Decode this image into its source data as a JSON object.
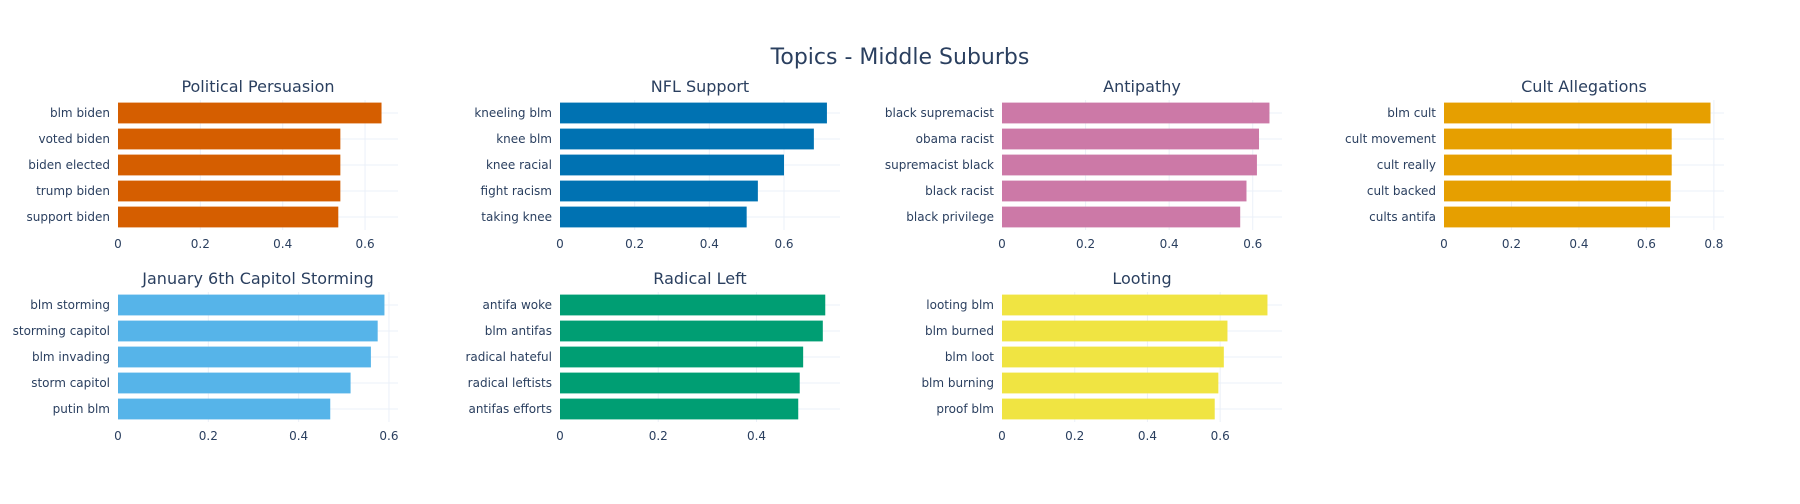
{
  "title": "Topics - Middle Suburbs",
  "chart_data": [
    {
      "type": "bar",
      "orientation": "horizontal",
      "title": "Political Persuasion",
      "color": "#D55E00",
      "categories": [
        "blm biden",
        "voted biden",
        "biden elected",
        "trump biden",
        "support biden"
      ],
      "values": [
        0.64,
        0.54,
        0.54,
        0.54,
        0.535
      ],
      "xlim": [
        0,
        0.68
      ],
      "xticks": [
        0,
        0.2,
        0.4,
        0.6
      ],
      "grid": true
    },
    {
      "type": "bar",
      "orientation": "horizontal",
      "title": "NFL Support",
      "color": "#0072B2",
      "categories": [
        "kneeling blm",
        "knee blm",
        "knee racial",
        "fight racism",
        "taking knee"
      ],
      "values": [
        0.715,
        0.68,
        0.6,
        0.53,
        0.5
      ],
      "xlim": [
        0,
        0.75
      ],
      "xticks": [
        0,
        0.2,
        0.4,
        0.6
      ],
      "grid": true
    },
    {
      "type": "bar",
      "orientation": "horizontal",
      "title": "Antipathy",
      "color": "#CC79A7",
      "categories": [
        "black supremacist",
        "obama racist",
        "supremacist black",
        "black racist",
        "black privilege"
      ],
      "values": [
        0.64,
        0.615,
        0.61,
        0.585,
        0.57
      ],
      "xlim": [
        0,
        0.67
      ],
      "xticks": [
        0,
        0.2,
        0.4,
        0.6
      ],
      "grid": true
    },
    {
      "type": "bar",
      "orientation": "horizontal",
      "title": "Cult Allegations",
      "color": "#E69F00",
      "categories": [
        "blm cult",
        "cult movement",
        "cult really",
        "cult backed",
        "cults antifa"
      ],
      "values": [
        0.79,
        0.675,
        0.675,
        0.672,
        0.67
      ],
      "xlim": [
        0,
        0.83
      ],
      "xticks": [
        0,
        0.2,
        0.4,
        0.6,
        0.8
      ],
      "grid": true
    },
    {
      "type": "bar",
      "orientation": "horizontal",
      "title": "January 6th Capitol Storming",
      "color": "#56B4E9",
      "categories": [
        "blm storming",
        "storming capitol",
        "blm invading",
        "storm capitol",
        "putin blm"
      ],
      "values": [
        0.59,
        0.575,
        0.56,
        0.515,
        0.47
      ],
      "xlim": [
        0,
        0.62
      ],
      "xticks": [
        0,
        0.2,
        0.4,
        0.6
      ],
      "grid": true
    },
    {
      "type": "bar",
      "orientation": "horizontal",
      "title": "Radical Left",
      "color": "#009E73",
      "categories": [
        "antifa woke",
        "blm antifas",
        "radical hateful",
        "radical leftists",
        "antifas efforts"
      ],
      "values": [
        0.54,
        0.535,
        0.495,
        0.488,
        0.485
      ],
      "xlim": [
        0,
        0.57
      ],
      "xticks": [
        0,
        0.2,
        0.4
      ],
      "grid": true
    },
    {
      "type": "bar",
      "orientation": "horizontal",
      "title": "Looting",
      "color": "#F0E442",
      "categories": [
        "looting blm",
        "blm burned",
        "blm loot",
        "blm burning",
        "proof blm"
      ],
      "values": [
        0.73,
        0.62,
        0.61,
        0.595,
        0.585
      ],
      "xlim": [
        0,
        0.77
      ],
      "xticks": [
        0,
        0.2,
        0.4,
        0.6
      ],
      "grid": true
    }
  ]
}
